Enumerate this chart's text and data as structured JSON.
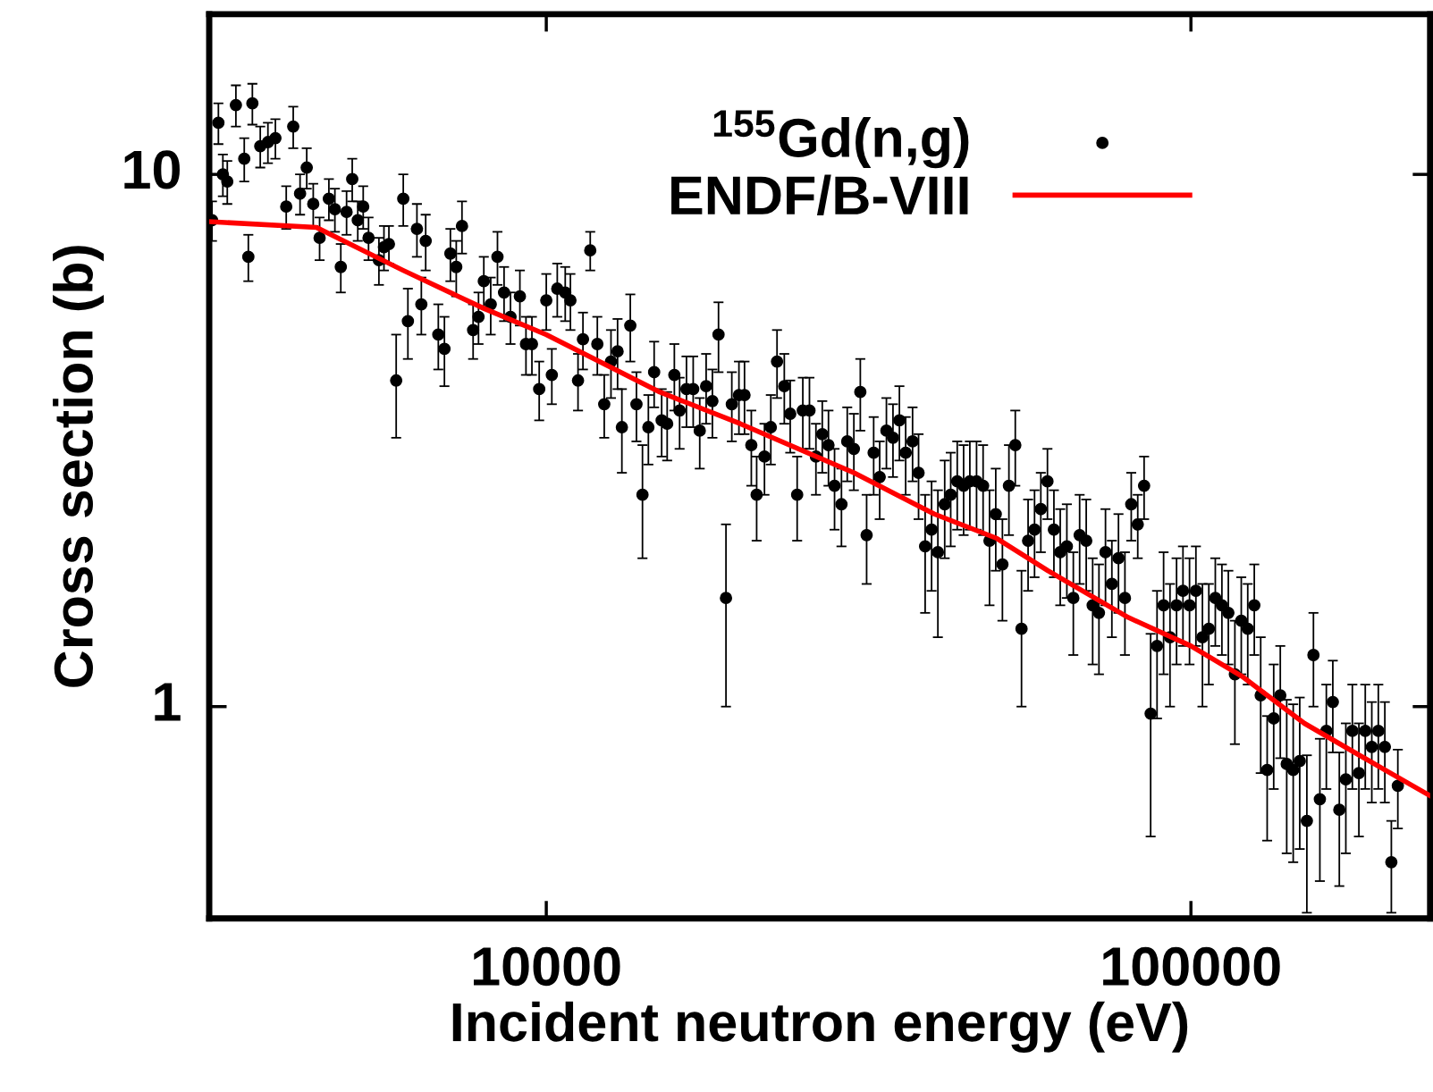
{
  "chart_data": {
    "type": "scatter",
    "xlabel": "Incident neutron energy (eV)",
    "ylabel": "Cross section (b)",
    "log": "xy",
    "xlim": [
      3000,
      235000
    ],
    "ylim": [
      0.4,
      20
    ],
    "xticks": [
      10000,
      100000
    ],
    "yticks": [
      1,
      10
    ],
    "grid": false,
    "legend": "top right",
    "series": [
      {
        "name": "$^{155}$Gd(n,g)",
        "marker": "circle",
        "color": "#000000",
        "x": [
          3030,
          3100,
          3150,
          3200,
          3300,
          3400,
          3450,
          3500,
          3600,
          3700,
          3800,
          3950,
          4050,
          4150,
          4250,
          4350,
          4450,
          4600,
          4700,
          4800,
          4900,
          5000,
          5100,
          5200,
          5300,
          5500,
          5600,
          5700,
          5850,
          6000,
          6100,
          6300,
          6400,
          6500,
          6800,
          6950,
          7100,
          7250,
          7400,
          7700,
          7850,
          8000,
          8200,
          8400,
          8600,
          8800,
          9100,
          9300,
          9500,
          9750,
          10000,
          10200,
          10400,
          10700,
          10900,
          11200,
          11400,
          11700,
          12000,
          12300,
          12600,
          12900,
          13100,
          13500,
          13800,
          14100,
          14400,
          14700,
          15100,
          15400,
          15800,
          16100,
          16500,
          16900,
          17300,
          17700,
          18100,
          18500,
          19000,
          19400,
          19900,
          20300,
          20800,
          21200,
          21800,
          22300,
          22800,
          23400,
          23900,
          24500,
          25000,
          25600,
          26200,
          26800,
          27400,
          28000,
          28700,
          29300,
          30000,
          30700,
          31400,
          32200,
          32900,
          33700,
          34500,
          35300,
          36100,
          37000,
          37800,
          38700,
          39600,
          40500,
          41500,
          42400,
          43400,
          44400,
          45400,
          46500,
          47600,
          48700,
          49800,
          51000,
          52200,
          53400,
          54600,
          55900,
          57200,
          58500,
          59900,
          61300,
          62700,
          64200,
          65700,
          67200,
          68800,
          70400,
          72000,
          73700,
          75400,
          77200,
          79000,
          80800,
          82700,
          84600,
          86600,
          88600,
          90700,
          92800,
          95000,
          97200,
          99500,
          101800,
          104200,
          106600,
          109100,
          111700,
          114300,
          117000,
          119700,
          122500,
          125400,
          128300,
          131300,
          134400,
          137600,
          140800,
          144100,
          147500,
          151300,
          154900,
          158500,
          162200,
          166000,
          169900,
          173900,
          178000,
          182200,
          186400,
          190800,
          195300,
          199900,
          204600,
          209400
        ],
        "values": [
          8.2,
          12.5,
          10,
          9.7,
          13.5,
          10.7,
          7.0,
          13.6,
          11.3,
          11.5,
          11.7,
          8.7,
          12.3,
          9.2,
          10.3,
          8.8,
          7.6,
          9.0,
          8.6,
          6.7,
          8.5,
          9.8,
          8.2,
          8.7,
          7.6,
          6.9,
          7.3,
          7.4,
          4.1,
          9.0,
          5.3,
          7.9,
          5.7,
          7.5,
          5.0,
          4.7,
          7.1,
          6.7,
          8.0,
          5.1,
          5.4,
          6.3,
          5.7,
          7.0,
          6.0,
          5.4,
          5.9,
          4.8,
          4.8,
          3.95,
          5.8,
          4.2,
          6.1,
          6.0,
          5.8,
          4.1,
          4.9,
          7.2,
          4.8,
          3.7,
          4.45,
          4.65,
          3.35,
          5.2,
          3.7,
          2.5,
          3.35,
          4.25,
          3.45,
          3.4,
          4.2,
          3.6,
          3.95,
          3.95,
          3.3,
          4.0,
          3.75,
          5.0,
          1.6,
          3.7,
          3.85,
          3.85,
          3.1,
          2.5,
          2.95,
          3.35,
          4.45,
          4.0,
          3.55,
          2.5,
          3.6,
          3.6,
          2.95,
          3.25,
          3.1,
          2.6,
          2.4,
          3.15,
          3.05,
          3.9,
          2.1,
          3.0,
          2.7,
          3.3,
          3.2,
          3.45,
          3.0,
          3.15,
          2.75,
          2.0,
          2.15,
          1.95,
          2.4,
          2.5,
          2.65,
          2.6,
          2.65,
          2.65,
          2.6,
          2.05,
          2.3,
          1.85,
          2.6,
          3.1,
          1.4,
          2.05,
          2.15,
          2.35,
          2.65,
          2.15,
          1.95,
          2.0,
          1.6,
          2.1,
          2.05,
          1.55,
          1.5,
          1.95,
          1.7,
          1.9,
          1.6,
          2.4,
          2.2,
          2.6,
          0.97,
          1.3,
          1.55,
          1.35,
          1.55,
          1.65,
          1.55,
          1.65,
          1.35,
          1.4,
          1.6,
          1.55,
          1.5,
          1.15,
          1.45,
          1.4,
          1.55,
          1.05,
          0.76,
          0.95,
          1.05,
          0.78,
          0.76,
          0.79,
          0.61,
          1.25,
          0.67,
          0.9,
          1.02,
          0.64,
          0.73,
          0.9,
          0.75,
          0.9,
          0.84,
          0.9,
          0.84,
          0.51,
          0.71
        ],
        "errors": [
          0.7,
          1.1,
          0.9,
          0.9,
          1.2,
          1.0,
          0.7,
          1.2,
          1.0,
          1.0,
          1.0,
          0.8,
          1.1,
          0.8,
          0.9,
          0.8,
          0.7,
          0.8,
          0.8,
          0.7,
          0.8,
          0.9,
          0.7,
          0.8,
          0.7,
          0.7,
          0.7,
          0.6,
          0.9,
          1.0,
          0.8,
          0.9,
          0.7,
          0.9,
          0.7,
          0.7,
          0.8,
          0.8,
          0.9,
          0.6,
          0.6,
          0.7,
          0.7,
          0.8,
          0.7,
          0.6,
          0.7,
          0.6,
          0.6,
          0.5,
          0.7,
          0.5,
          0.7,
          0.7,
          0.7,
          0.5,
          0.6,
          0.6,
          0.6,
          0.5,
          0.65,
          0.7,
          0.6,
          0.75,
          0.55,
          0.6,
          0.5,
          0.6,
          0.5,
          0.5,
          0.6,
          0.55,
          0.6,
          0.6,
          0.5,
          0.6,
          0.55,
          0.75,
          0.6,
          0.55,
          0.6,
          0.6,
          0.5,
          0.45,
          0.45,
          0.5,
          0.65,
          0.6,
          0.55,
          0.45,
          0.55,
          0.55,
          0.45,
          0.5,
          0.5,
          0.45,
          0.4,
          0.5,
          0.5,
          0.6,
          0.4,
          0.5,
          0.45,
          0.5,
          0.5,
          0.55,
          0.5,
          0.5,
          0.5,
          0.5,
          0.5,
          0.6,
          0.5,
          0.5,
          0.5,
          0.5,
          0.5,
          0.5,
          0.5,
          0.5,
          0.5,
          0.4,
          0.5,
          0.5,
          0.4,
          0.4,
          0.4,
          0.4,
          0.4,
          0.4,
          0.4,
          0.4,
          0.35,
          0.4,
          0.4,
          0.35,
          0.35,
          0.4,
          0.35,
          0.4,
          0.35,
          0.35,
          0.3,
          0.35,
          0.4,
          0.35,
          0.4,
          0.35,
          0.35,
          0.35,
          0.35,
          0.35,
          0.35,
          0.3,
          0.3,
          0.3,
          0.3,
          0.3,
          0.3,
          0.3,
          0.3,
          0.3,
          0.2,
          0.25,
          0.25,
          0.25,
          0.25,
          0.25,
          0.2,
          0.25,
          0.2,
          0.2,
          0.2,
          0.18,
          0.2,
          0.2,
          0.18,
          0.2,
          0.18,
          0.2,
          0.18,
          0.1,
          0.12
        ]
      },
      {
        "name": "ENDF/B-VIII",
        "type": "line",
        "color": "#ff0000",
        "line_style": "solid",
        "x": [
          3000,
          4400,
          6000,
          8000,
          10000,
          15000,
          20000,
          30000,
          40000,
          50000,
          60000,
          80000,
          100000,
          120000,
          150000,
          200000,
          235000
        ],
        "values": [
          8.15,
          7.95,
          6.6,
          5.6,
          5.0,
          3.9,
          3.4,
          2.75,
          2.3,
          2.07,
          1.8,
          1.47,
          1.3,
          1.14,
          0.93,
          0.76,
          0.68
        ]
      }
    ]
  }
}
